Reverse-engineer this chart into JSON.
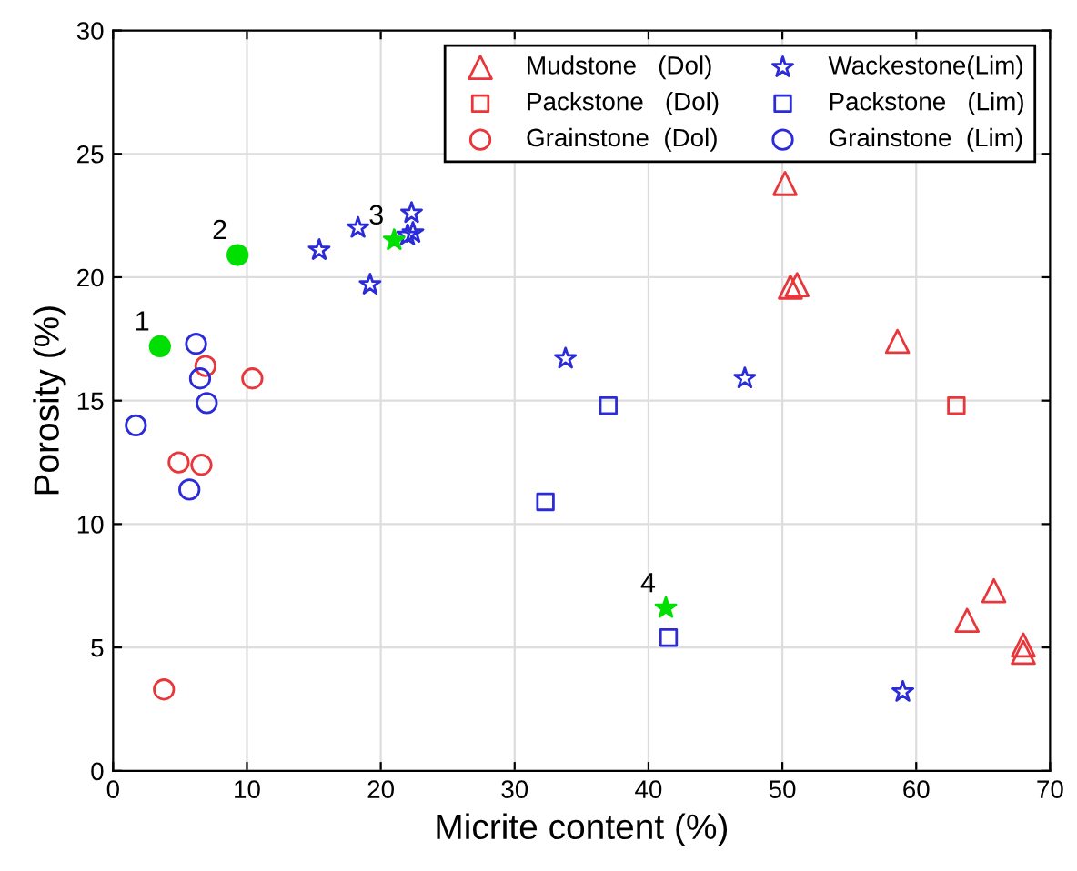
{
  "chart_data": {
    "type": "scatter",
    "xlabel": "Micrite content (%)",
    "ylabel": "Porosity (%)",
    "xlim": [
      0,
      70
    ],
    "ylim": [
      0,
      30
    ],
    "xticks": [
      0,
      10,
      20,
      30,
      40,
      50,
      60,
      70
    ],
    "yticks": [
      0,
      5,
      10,
      15,
      20,
      25,
      30
    ],
    "grid": true,
    "legend": "top right",
    "series": [
      {
        "name": "Mudstone   (Dol)",
        "color": "#e8363a",
        "marker": "triangle",
        "x": [
          50.2,
          50.6,
          51.1,
          58.6,
          63.8,
          65.8,
          68.0,
          68.0
        ],
        "values": [
          23.8,
          19.6,
          19.7,
          17.4,
          6.1,
          7.3,
          5.1,
          4.8
        ]
      },
      {
        "name": "Packstone   (Dol)",
        "color": "#e8363a",
        "marker": "square",
        "x": [
          63.0
        ],
        "values": [
          14.8
        ]
      },
      {
        "name": "Grainstone  (Dol)",
        "color": "#e8363a",
        "marker": "circle",
        "x": [
          3.8,
          4.9,
          6.6,
          6.9,
          10.4
        ],
        "values": [
          3.3,
          12.5,
          12.4,
          16.4,
          15.9
        ]
      },
      {
        "name": "Wackestone(Lim)",
        "color": "#2b2bd8",
        "marker": "star",
        "x": [
          15.4,
          18.3,
          19.2,
          22.3,
          22.0,
          22.4,
          33.8,
          47.2,
          59.0
        ],
        "values": [
          21.1,
          22.0,
          19.7,
          22.6,
          21.7,
          21.8,
          16.7,
          15.9,
          3.2
        ]
      },
      {
        "name": "Packstone   (Lim)",
        "color": "#2b2bd8",
        "marker": "square",
        "x": [
          37.0,
          32.3,
          41.5
        ],
        "values": [
          14.8,
          10.9,
          5.4
        ]
      },
      {
        "name": "Grainstone  (Lim)",
        "color": "#2b2bd8",
        "marker": "circle",
        "x": [
          1.7,
          5.7,
          6.2,
          6.5,
          7.0
        ],
        "values": [
          14.0,
          11.4,
          17.3,
          15.9,
          14.9
        ]
      },
      {
        "color": "#00e000",
        "marker": "circle",
        "x": [
          3.5,
          9.3
        ],
        "values": [
          17.2,
          20.9
        ]
      },
      {
        "color": "#00e000",
        "marker": "star",
        "x": [
          21.0,
          41.3
        ],
        "values": [
          21.5,
          6.6
        ]
      }
    ],
    "annotations": [
      {
        "text": "1",
        "x": 3.5,
        "y": 17.2
      },
      {
        "text": "2",
        "x": 9.3,
        "y": 20.9
      },
      {
        "text": "3",
        "x": 21.0,
        "y": 21.5
      },
      {
        "text": "4",
        "x": 41.3,
        "y": 6.6
      }
    ]
  }
}
